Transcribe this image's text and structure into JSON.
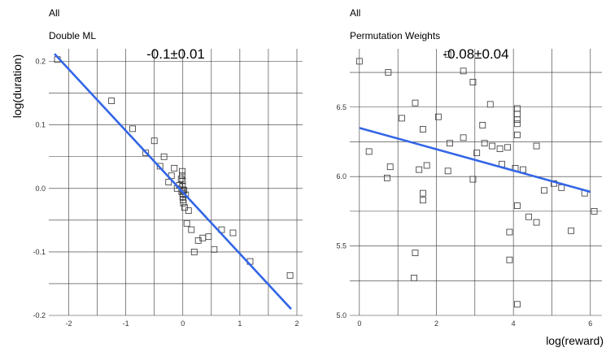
{
  "chart_data": [
    {
      "type": "scatter",
      "facet_row": "All",
      "facet_col": "Double ML",
      "annotation": "-0.1±0.01",
      "xlabel": "",
      "ylabel": "log(duration)",
      "xlim": [
        -2.35,
        2.1
      ],
      "ylim": [
        -0.2,
        0.22
      ],
      "xticks": [
        -2,
        -1,
        0,
        1,
        2
      ],
      "yticks": [
        -0.2,
        -0.1,
        0.0,
        0.1,
        0.2
      ],
      "xtick_labels": [
        "-2",
        "-1",
        "0",
        "1",
        "2"
      ],
      "ytick_labels": [
        "-0.2",
        "-0.1",
        "0.0",
        "0.1",
        "0.2"
      ],
      "grid": true,
      "fit_line": {
        "x": [
          -2.25,
          1.9
        ],
        "y": [
          0.212,
          -0.19
        ]
      },
      "points": [
        {
          "x": -2.2,
          "y": 0.203
        },
        {
          "x": -1.25,
          "y": 0.138
        },
        {
          "x": -0.88,
          "y": 0.094
        },
        {
          "x": -0.65,
          "y": 0.056
        },
        {
          "x": -0.5,
          "y": 0.075
        },
        {
          "x": -0.4,
          "y": 0.035
        },
        {
          "x": -0.33,
          "y": 0.05
        },
        {
          "x": -0.25,
          "y": 0.01
        },
        {
          "x": -0.2,
          "y": 0.02
        },
        {
          "x": -0.15,
          "y": 0.032
        },
        {
          "x": -0.1,
          "y": 0.0
        },
        {
          "x": -0.06,
          "y": 0.005
        },
        {
          "x": -0.03,
          "y": 0.015
        },
        {
          "x": -0.02,
          "y": -0.005
        },
        {
          "x": -0.01,
          "y": 0.027
        },
        {
          "x": -0.01,
          "y": 0.02
        },
        {
          "x": -0.005,
          "y": 0.012
        },
        {
          "x": -0.005,
          "y": 0.004
        },
        {
          "x": 0.0,
          "y": -0.002
        },
        {
          "x": 0.0,
          "y": -0.008
        },
        {
          "x": 0.0,
          "y": -0.013
        },
        {
          "x": 0.005,
          "y": -0.018
        },
        {
          "x": 0.01,
          "y": -0.023
        },
        {
          "x": 0.02,
          "y": -0.003
        },
        {
          "x": 0.03,
          "y": -0.03
        },
        {
          "x": 0.05,
          "y": -0.01
        },
        {
          "x": 0.07,
          "y": -0.055
        },
        {
          "x": 0.1,
          "y": -0.035
        },
        {
          "x": 0.15,
          "y": -0.065
        },
        {
          "x": 0.2,
          "y": -0.1
        },
        {
          "x": 0.27,
          "y": -0.082
        },
        {
          "x": 0.35,
          "y": -0.078
        },
        {
          "x": 0.45,
          "y": -0.076
        },
        {
          "x": 0.55,
          "y": -0.096
        },
        {
          "x": 0.68,
          "y": -0.065
        },
        {
          "x": 0.88,
          "y": -0.07
        },
        {
          "x": 1.18,
          "y": -0.115
        },
        {
          "x": 1.88,
          "y": -0.137
        }
      ]
    },
    {
      "type": "scatter",
      "facet_row": "All",
      "facet_col": "Permutation Weights",
      "annotation": "-0.08±0.04",
      "xlabel": "log(reward)",
      "ylabel": "",
      "xlim": [
        -0.25,
        6.3
      ],
      "ylim": [
        5.0,
        6.92
      ],
      "xticks": [
        0,
        2,
        4,
        6
      ],
      "yticks": [
        5.0,
        5.5,
        6.0,
        6.5
      ],
      "xtick_labels": [
        "0",
        "2",
        "4",
        "6"
      ],
      "ytick_labels": [
        "5.0",
        "5.5",
        "6.0",
        "6.5"
      ],
      "grid": true,
      "fit_line": {
        "x": [
          0.0,
          6.0
        ],
        "y": [
          6.35,
          5.89
        ]
      },
      "points": [
        {
          "x": 0.0,
          "y": 6.83
        },
        {
          "x": 0.25,
          "y": 6.18
        },
        {
          "x": 0.75,
          "y": 6.75
        },
        {
          "x": 0.72,
          "y": 5.99
        },
        {
          "x": 0.8,
          "y": 6.07
        },
        {
          "x": 1.1,
          "y": 6.42
        },
        {
          "x": 1.45,
          "y": 6.53
        },
        {
          "x": 1.45,
          "y": 5.45
        },
        {
          "x": 1.42,
          "y": 5.27
        },
        {
          "x": 1.55,
          "y": 6.05
        },
        {
          "x": 1.65,
          "y": 6.34
        },
        {
          "x": 1.65,
          "y": 5.88
        },
        {
          "x": 1.65,
          "y": 5.83
        },
        {
          "x": 1.75,
          "y": 6.08
        },
        {
          "x": 2.05,
          "y": 6.43
        },
        {
          "x": 2.3,
          "y": 6.88
        },
        {
          "x": 2.35,
          "y": 6.24
        },
        {
          "x": 2.3,
          "y": 6.04
        },
        {
          "x": 2.7,
          "y": 6.76
        },
        {
          "x": 2.7,
          "y": 6.28
        },
        {
          "x": 2.95,
          "y": 6.68
        },
        {
          "x": 2.95,
          "y": 5.98
        },
        {
          "x": 3.05,
          "y": 6.17
        },
        {
          "x": 3.2,
          "y": 6.37
        },
        {
          "x": 3.25,
          "y": 6.24
        },
        {
          "x": 3.4,
          "y": 6.52
        },
        {
          "x": 3.45,
          "y": 6.22
        },
        {
          "x": 3.65,
          "y": 6.2
        },
        {
          "x": 3.7,
          "y": 6.09
        },
        {
          "x": 3.85,
          "y": 6.21
        },
        {
          "x": 3.9,
          "y": 5.6
        },
        {
          "x": 3.9,
          "y": 5.4
        },
        {
          "x": 4.05,
          "y": 6.06
        },
        {
          "x": 4.1,
          "y": 6.49
        },
        {
          "x": 4.1,
          "y": 6.45
        },
        {
          "x": 4.1,
          "y": 6.41
        },
        {
          "x": 4.1,
          "y": 6.38
        },
        {
          "x": 4.1,
          "y": 6.3
        },
        {
          "x": 4.1,
          "y": 5.79
        },
        {
          "x": 4.1,
          "y": 5.08
        },
        {
          "x": 4.25,
          "y": 6.05
        },
        {
          "x": 4.4,
          "y": 5.71
        },
        {
          "x": 4.6,
          "y": 6.22
        },
        {
          "x": 4.6,
          "y": 5.67
        },
        {
          "x": 4.8,
          "y": 5.9
        },
        {
          "x": 5.05,
          "y": 5.95
        },
        {
          "x": 5.25,
          "y": 5.92
        },
        {
          "x": 5.5,
          "y": 5.61
        },
        {
          "x": 5.85,
          "y": 5.88
        },
        {
          "x": 6.1,
          "y": 5.75
        }
      ]
    }
  ]
}
